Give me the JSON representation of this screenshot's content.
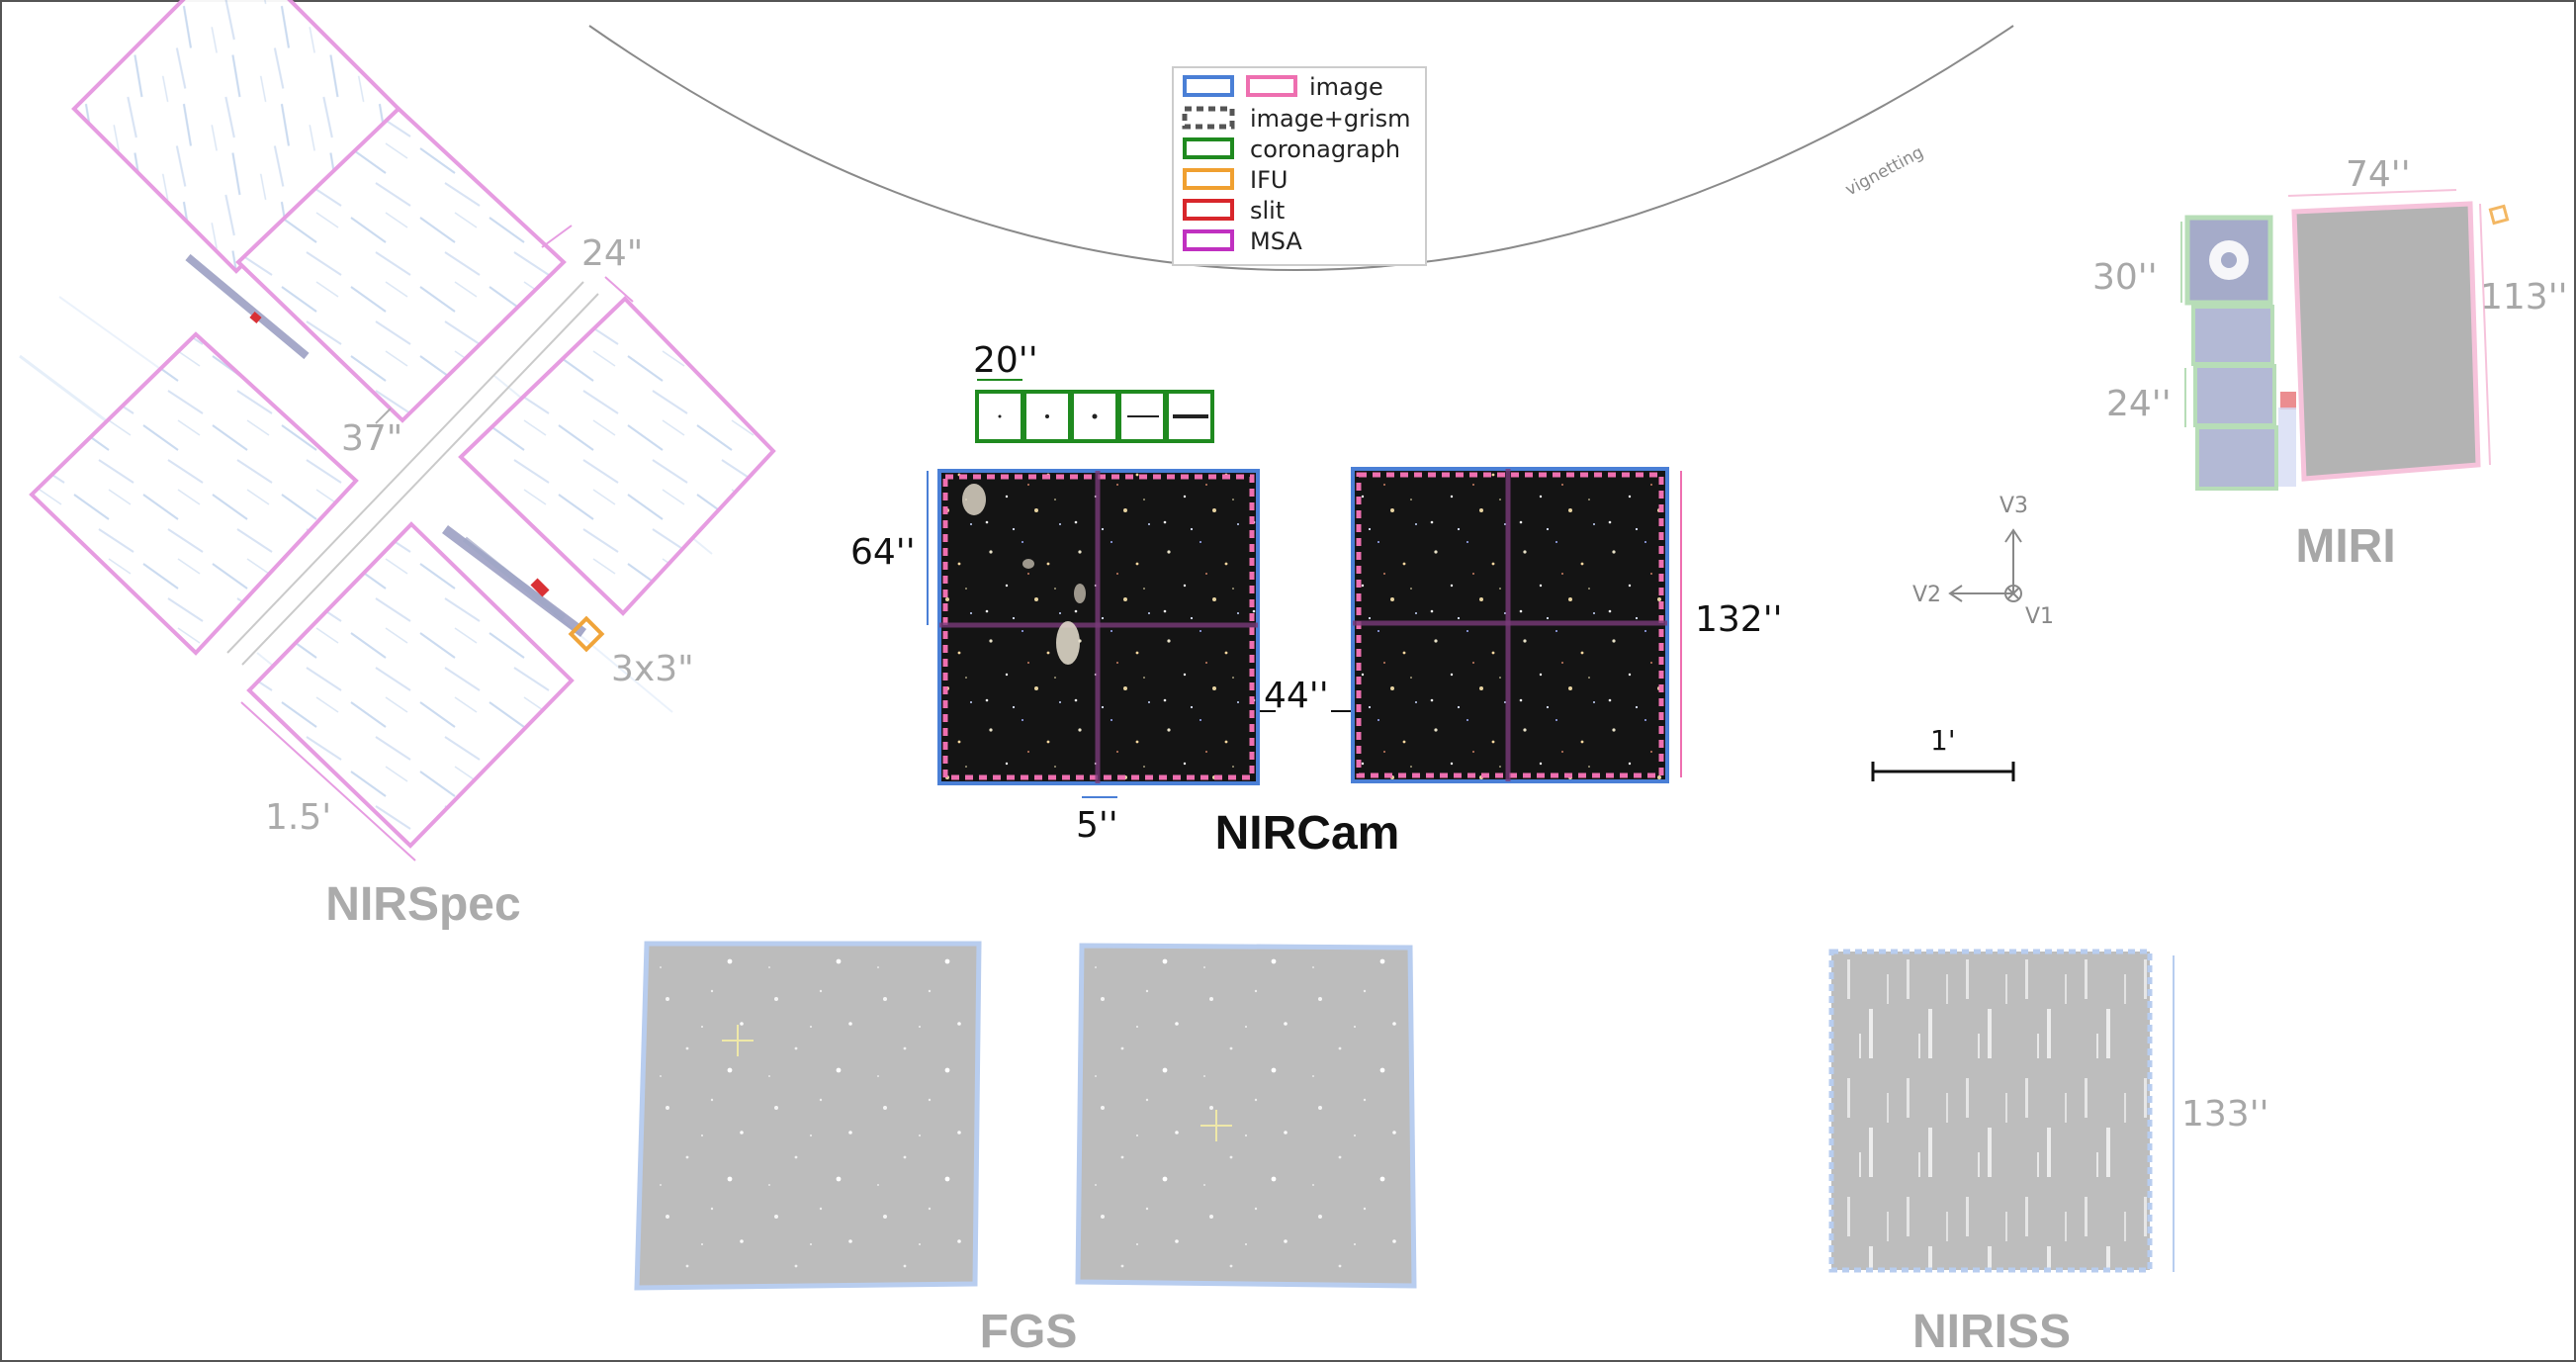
{
  "colors": {
    "image_blue": "#4a7fd6",
    "image_pink": "#ee6fb0",
    "grism": "#555555",
    "coronagraph": "#1f8a1f",
    "ifu": "#f0a030",
    "slit": "#d8262b",
    "msa": "#c030c0",
    "faded_text": "#a7a7a7",
    "sky": "#1a1a1a",
    "gray_field": "#bdbdbd"
  },
  "legend": {
    "items": [
      {
        "key": "image",
        "label": "image"
      },
      {
        "key": "grism",
        "label": "image+grism"
      },
      {
        "key": "coronagraph",
        "label": "coronagraph"
      },
      {
        "key": "ifu",
        "label": "IFU"
      },
      {
        "key": "slit",
        "label": "slit"
      },
      {
        "key": "msa",
        "label": "MSA"
      }
    ]
  },
  "vignetting": {
    "label": "vignetting"
  },
  "nircam": {
    "title": "NIRCam",
    "dim_coronagraph": "20''",
    "dim_height": "64''",
    "dim_gap_module": "44''",
    "dim_gap_detector": "5''",
    "dim_long": "132''"
  },
  "nirspec": {
    "title": "NIRSpec",
    "dim_gap_top": "24\"",
    "dim_gap_mid": "37\"",
    "dim_ifu": "3x3\"",
    "dim_side": "1.5'"
  },
  "miri": {
    "title": "MIRI",
    "dim_width": "74''",
    "dim_height": "113''",
    "dim_coronagraph": "30''",
    "dim_small": "24''"
  },
  "axes": {
    "v3": "V3",
    "v2": "V2",
    "v1": "V1"
  },
  "scale_bar": {
    "label": "1'"
  },
  "fgs": {
    "title": "FGS"
  },
  "niriss": {
    "title": "NIRISS",
    "dim": "133''"
  }
}
